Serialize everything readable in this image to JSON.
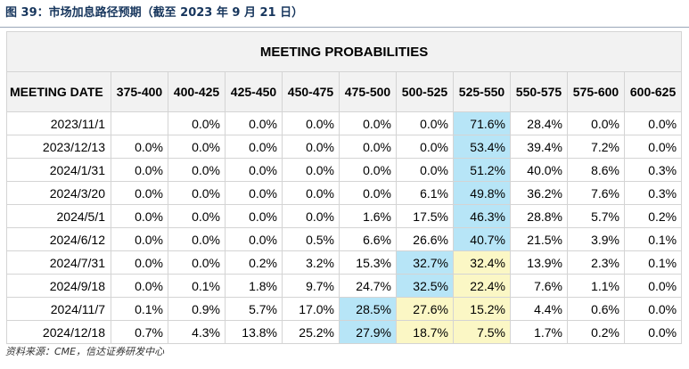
{
  "caption": "图 39：市场加息路径预期（截至 2023 年 9 月 21 日）",
  "table": {
    "title": "MEETING PROBABILITIES",
    "headers": [
      "MEETING DATE",
      "375-400",
      "400-425",
      "425-450",
      "450-475",
      "475-500",
      "500-525",
      "525-550",
      "550-575",
      "575-600",
      "600-625"
    ],
    "rows": [
      {
        "date": "2023/11/1",
        "values": [
          "",
          "0.0%",
          "0.0%",
          "0.0%",
          "0.0%",
          "0.0%",
          "71.6%",
          "28.4%",
          "0.0%",
          "0.0%"
        ],
        "highlight": [
          "",
          "",
          "",
          "",
          "",
          "",
          "blue",
          "",
          "",
          ""
        ]
      },
      {
        "date": "2023/12/13",
        "values": [
          "0.0%",
          "0.0%",
          "0.0%",
          "0.0%",
          "0.0%",
          "0.0%",
          "53.4%",
          "39.4%",
          "7.2%",
          "0.0%"
        ],
        "highlight": [
          "",
          "",
          "",
          "",
          "",
          "",
          "blue",
          "",
          "",
          ""
        ]
      },
      {
        "date": "2024/1/31",
        "values": [
          "0.0%",
          "0.0%",
          "0.0%",
          "0.0%",
          "0.0%",
          "0.0%",
          "51.2%",
          "40.0%",
          "8.6%",
          "0.3%"
        ],
        "highlight": [
          "",
          "",
          "",
          "",
          "",
          "",
          "blue",
          "",
          "",
          ""
        ]
      },
      {
        "date": "2024/3/20",
        "values": [
          "0.0%",
          "0.0%",
          "0.0%",
          "0.0%",
          "0.0%",
          "6.1%",
          "49.8%",
          "36.2%",
          "7.6%",
          "0.3%"
        ],
        "highlight": [
          "",
          "",
          "",
          "",
          "",
          "",
          "blue",
          "",
          "",
          ""
        ]
      },
      {
        "date": "2024/5/1",
        "values": [
          "0.0%",
          "0.0%",
          "0.0%",
          "0.0%",
          "1.6%",
          "17.5%",
          "46.3%",
          "28.8%",
          "5.7%",
          "0.2%"
        ],
        "highlight": [
          "",
          "",
          "",
          "",
          "",
          "",
          "blue",
          "",
          "",
          ""
        ]
      },
      {
        "date": "2024/6/12",
        "values": [
          "0.0%",
          "0.0%",
          "0.0%",
          "0.5%",
          "6.6%",
          "26.6%",
          "40.7%",
          "21.5%",
          "3.9%",
          "0.1%"
        ],
        "highlight": [
          "",
          "",
          "",
          "",
          "",
          "",
          "blue",
          "",
          "",
          ""
        ]
      },
      {
        "date": "2024/7/31",
        "values": [
          "0.0%",
          "0.0%",
          "0.2%",
          "3.2%",
          "15.3%",
          "32.7%",
          "32.4%",
          "13.9%",
          "2.3%",
          "0.1%"
        ],
        "highlight": [
          "",
          "",
          "",
          "",
          "",
          "blue",
          "yellow",
          "",
          "",
          ""
        ]
      },
      {
        "date": "2024/9/18",
        "values": [
          "0.0%",
          "0.1%",
          "1.8%",
          "9.7%",
          "24.7%",
          "32.5%",
          "22.4%",
          "7.6%",
          "1.1%",
          "0.0%"
        ],
        "highlight": [
          "",
          "",
          "",
          "",
          "",
          "blue",
          "yellow",
          "",
          "",
          ""
        ]
      },
      {
        "date": "2024/11/7",
        "values": [
          "0.1%",
          "0.9%",
          "5.7%",
          "17.0%",
          "28.5%",
          "27.6%",
          "15.2%",
          "4.4%",
          "0.6%",
          "0.0%"
        ],
        "highlight": [
          "",
          "",
          "",
          "",
          "blue",
          "yellow",
          "yellow",
          "",
          "",
          ""
        ]
      },
      {
        "date": "2024/12/18",
        "values": [
          "0.7%",
          "4.3%",
          "13.8%",
          "25.2%",
          "27.9%",
          "18.7%",
          "7.5%",
          "1.7%",
          "0.2%",
          "0.0%"
        ],
        "highlight": [
          "",
          "",
          "",
          "",
          "blue",
          "yellow",
          "yellow",
          "",
          "",
          ""
        ]
      }
    ]
  },
  "colors": {
    "highlight_blue": "#b7e5f7",
    "highlight_yellow": "#fbf7c5",
    "header_bg": "#f2f2f2",
    "caption": "#17365d"
  },
  "source": "资料来源：CME，信达证券研发中心"
}
